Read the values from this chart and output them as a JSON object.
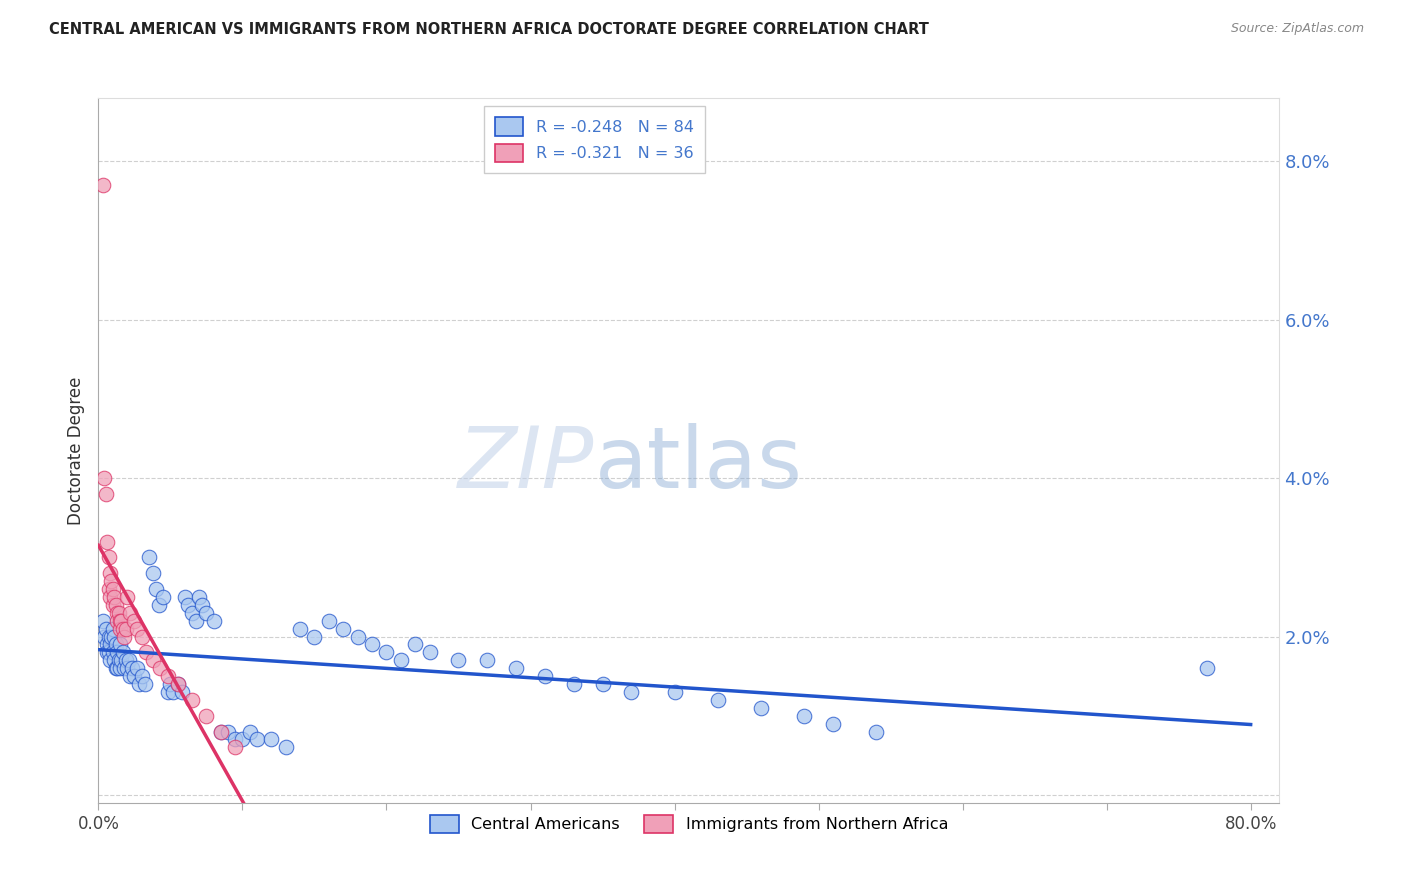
{
  "title": "CENTRAL AMERICAN VS IMMIGRANTS FROM NORTHERN AFRICA DOCTORATE DEGREE CORRELATION CHART",
  "source": "Source: ZipAtlas.com",
  "ylabel": "Doctorate Degree",
  "xlim": [
    0.0,
    0.82
  ],
  "ylim": [
    -0.001,
    0.088
  ],
  "yticks": [
    0.0,
    0.02,
    0.04,
    0.06,
    0.08
  ],
  "ytick_labels": [
    "",
    "2.0%",
    "4.0%",
    "6.0%",
    "8.0%"
  ],
  "xticks": [
    0.0,
    0.1,
    0.2,
    0.3,
    0.4,
    0.5,
    0.6,
    0.7,
    0.8
  ],
  "xtick_labels": [
    "0.0%",
    "",
    "",
    "",
    "",
    "",
    "",
    "",
    "80.0%"
  ],
  "grid_color": "#d0d0d0",
  "background_color": "#ffffff",
  "blue_color": "#aac8f0",
  "pink_color": "#f0a0b8",
  "blue_line_color": "#2255cc",
  "pink_line_color": "#dd3366",
  "legend_R_blue": "-0.248",
  "legend_N_blue": "84",
  "legend_R_pink": "-0.321",
  "legend_N_pink": "36",
  "label_blue": "Central Americans",
  "label_pink": "Immigrants from Northern Africa",
  "watermark_zip": "ZIP",
  "watermark_atlas": "atlas",
  "blue_x": [
    0.003,
    0.004,
    0.005,
    0.006,
    0.006,
    0.007,
    0.007,
    0.008,
    0.008,
    0.009,
    0.01,
    0.01,
    0.011,
    0.011,
    0.012,
    0.012,
    0.013,
    0.013,
    0.014,
    0.015,
    0.015,
    0.016,
    0.017,
    0.018,
    0.019,
    0.02,
    0.021,
    0.022,
    0.023,
    0.025,
    0.027,
    0.028,
    0.03,
    0.032,
    0.035,
    0.038,
    0.04,
    0.042,
    0.045,
    0.048,
    0.05,
    0.052,
    0.055,
    0.058,
    0.06,
    0.062,
    0.065,
    0.068,
    0.07,
    0.072,
    0.075,
    0.08,
    0.085,
    0.09,
    0.095,
    0.1,
    0.105,
    0.11,
    0.12,
    0.13,
    0.14,
    0.15,
    0.16,
    0.17,
    0.18,
    0.19,
    0.2,
    0.21,
    0.22,
    0.23,
    0.25,
    0.27,
    0.29,
    0.31,
    0.33,
    0.35,
    0.37,
    0.4,
    0.43,
    0.46,
    0.49,
    0.51,
    0.54,
    0.77
  ],
  "blue_y": [
    0.022,
    0.02,
    0.021,
    0.019,
    0.018,
    0.02,
    0.018,
    0.019,
    0.017,
    0.02,
    0.021,
    0.018,
    0.02,
    0.017,
    0.019,
    0.016,
    0.018,
    0.016,
    0.017,
    0.019,
    0.016,
    0.017,
    0.018,
    0.016,
    0.017,
    0.016,
    0.017,
    0.015,
    0.016,
    0.015,
    0.016,
    0.014,
    0.015,
    0.014,
    0.03,
    0.028,
    0.026,
    0.024,
    0.025,
    0.013,
    0.014,
    0.013,
    0.014,
    0.013,
    0.025,
    0.024,
    0.023,
    0.022,
    0.025,
    0.024,
    0.023,
    0.022,
    0.008,
    0.008,
    0.007,
    0.007,
    0.008,
    0.007,
    0.007,
    0.006,
    0.021,
    0.02,
    0.022,
    0.021,
    0.02,
    0.019,
    0.018,
    0.017,
    0.019,
    0.018,
    0.017,
    0.017,
    0.016,
    0.015,
    0.014,
    0.014,
    0.013,
    0.013,
    0.012,
    0.011,
    0.01,
    0.009,
    0.008,
    0.016
  ],
  "pink_x": [
    0.003,
    0.004,
    0.005,
    0.006,
    0.007,
    0.007,
    0.008,
    0.008,
    0.009,
    0.01,
    0.01,
    0.011,
    0.012,
    0.013,
    0.013,
    0.014,
    0.015,
    0.015,
    0.016,
    0.017,
    0.018,
    0.019,
    0.02,
    0.022,
    0.025,
    0.027,
    0.03,
    0.033,
    0.038,
    0.043,
    0.048,
    0.055,
    0.065,
    0.075,
    0.085,
    0.095
  ],
  "pink_y": [
    0.077,
    0.04,
    0.038,
    0.032,
    0.03,
    0.026,
    0.028,
    0.025,
    0.027,
    0.026,
    0.024,
    0.025,
    0.024,
    0.023,
    0.022,
    0.023,
    0.022,
    0.021,
    0.022,
    0.021,
    0.02,
    0.021,
    0.025,
    0.023,
    0.022,
    0.021,
    0.02,
    0.018,
    0.017,
    0.016,
    0.015,
    0.014,
    0.012,
    0.01,
    0.008,
    0.006
  ]
}
